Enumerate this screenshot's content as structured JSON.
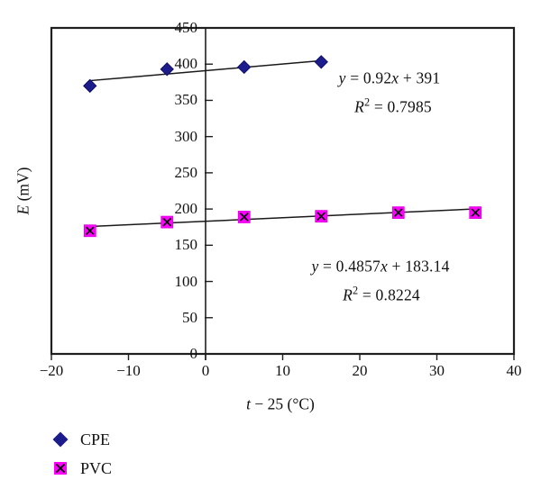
{
  "colors": {
    "cpe": "#1c1c8c",
    "cpe_edge": "#0f0f66",
    "pvc": "#ff00ff",
    "pvc_edge": "#e000e0",
    "axis": "#1f1f1f",
    "trendline": "#1a1a1a",
    "background": "#ffffff"
  },
  "chart_data": {
    "type": "scatter",
    "title": "",
    "xlabel": "t − 25 (°C)",
    "xlabel_segments": [
      [
        "t",
        "i"
      ],
      [
        " − 25 (°C)",
        ""
      ]
    ],
    "ylabel": "E (mV)",
    "ylabel_segments": [
      [
        "E",
        "i"
      ],
      [
        " (mV)",
        ""
      ]
    ],
    "xlim": [
      -20,
      40
    ],
    "ylim": [
      0,
      450
    ],
    "grid": false,
    "legend_position": "bottom-left",
    "x_ticks": [
      {
        "v": -20,
        "label": "−20"
      },
      {
        "v": -10,
        "label": "−10"
      },
      {
        "v": 0,
        "label": "0"
      },
      {
        "v": 10,
        "label": "10"
      },
      {
        "v": 20,
        "label": "20"
      },
      {
        "v": 30,
        "label": "30"
      },
      {
        "v": 40,
        "label": "40"
      }
    ],
    "y_ticks": [
      {
        "v": 0,
        "label": "0"
      },
      {
        "v": 50,
        "label": "50"
      },
      {
        "v": 100,
        "label": "100"
      },
      {
        "v": 150,
        "label": "150"
      },
      {
        "v": 200,
        "label": "200"
      },
      {
        "v": 250,
        "label": "250"
      },
      {
        "v": 300,
        "label": "300"
      },
      {
        "v": 350,
        "label": "350"
      },
      {
        "v": 400,
        "label": "400"
      },
      {
        "v": 450,
        "label": "450"
      }
    ],
    "series": [
      {
        "name": "CPE",
        "marker": "diamond",
        "color": "#1c1c8c",
        "points": [
          [
            -15,
            370
          ],
          [
            -5,
            393
          ],
          [
            5,
            396
          ],
          [
            15,
            403
          ]
        ],
        "trendline": {
          "slope": 0.92,
          "intercept": 391,
          "x_start": -15,
          "x_end": 15
        },
        "equation": "y = 0.92x + 391",
        "equation_segments": [
          [
            "y",
            "i"
          ],
          [
            " = 0.92",
            ""
          ],
          [
            "x",
            "i"
          ],
          [
            " + 391",
            ""
          ]
        ],
        "r_squared": "R² = 0.7985",
        "r_squared_segments": [
          [
            "R",
            "i"
          ],
          [
            "2",
            "sup"
          ],
          [
            " = 0.7985",
            ""
          ]
        ]
      },
      {
        "name": "PVC",
        "marker": "square-x",
        "color": "#ff00ff",
        "points": [
          [
            -15,
            170
          ],
          [
            -5,
            182
          ],
          [
            5,
            189
          ],
          [
            15,
            190
          ],
          [
            25,
            195
          ],
          [
            35,
            195
          ]
        ],
        "trendline": {
          "slope": 0.4857,
          "intercept": 183.14,
          "x_start": -15,
          "x_end": 35
        },
        "equation": "y = 0.4857x + 183.14",
        "equation_segments": [
          [
            "y",
            "i"
          ],
          [
            " = 0.4857",
            ""
          ],
          [
            "x",
            "i"
          ],
          [
            " + 183.14",
            ""
          ]
        ],
        "r_squared": "R² = 0.8224",
        "r_squared_segments": [
          [
            "R",
            "i"
          ],
          [
            "2",
            "sup"
          ],
          [
            " = 0.8224",
            ""
          ]
        ]
      }
    ]
  }
}
